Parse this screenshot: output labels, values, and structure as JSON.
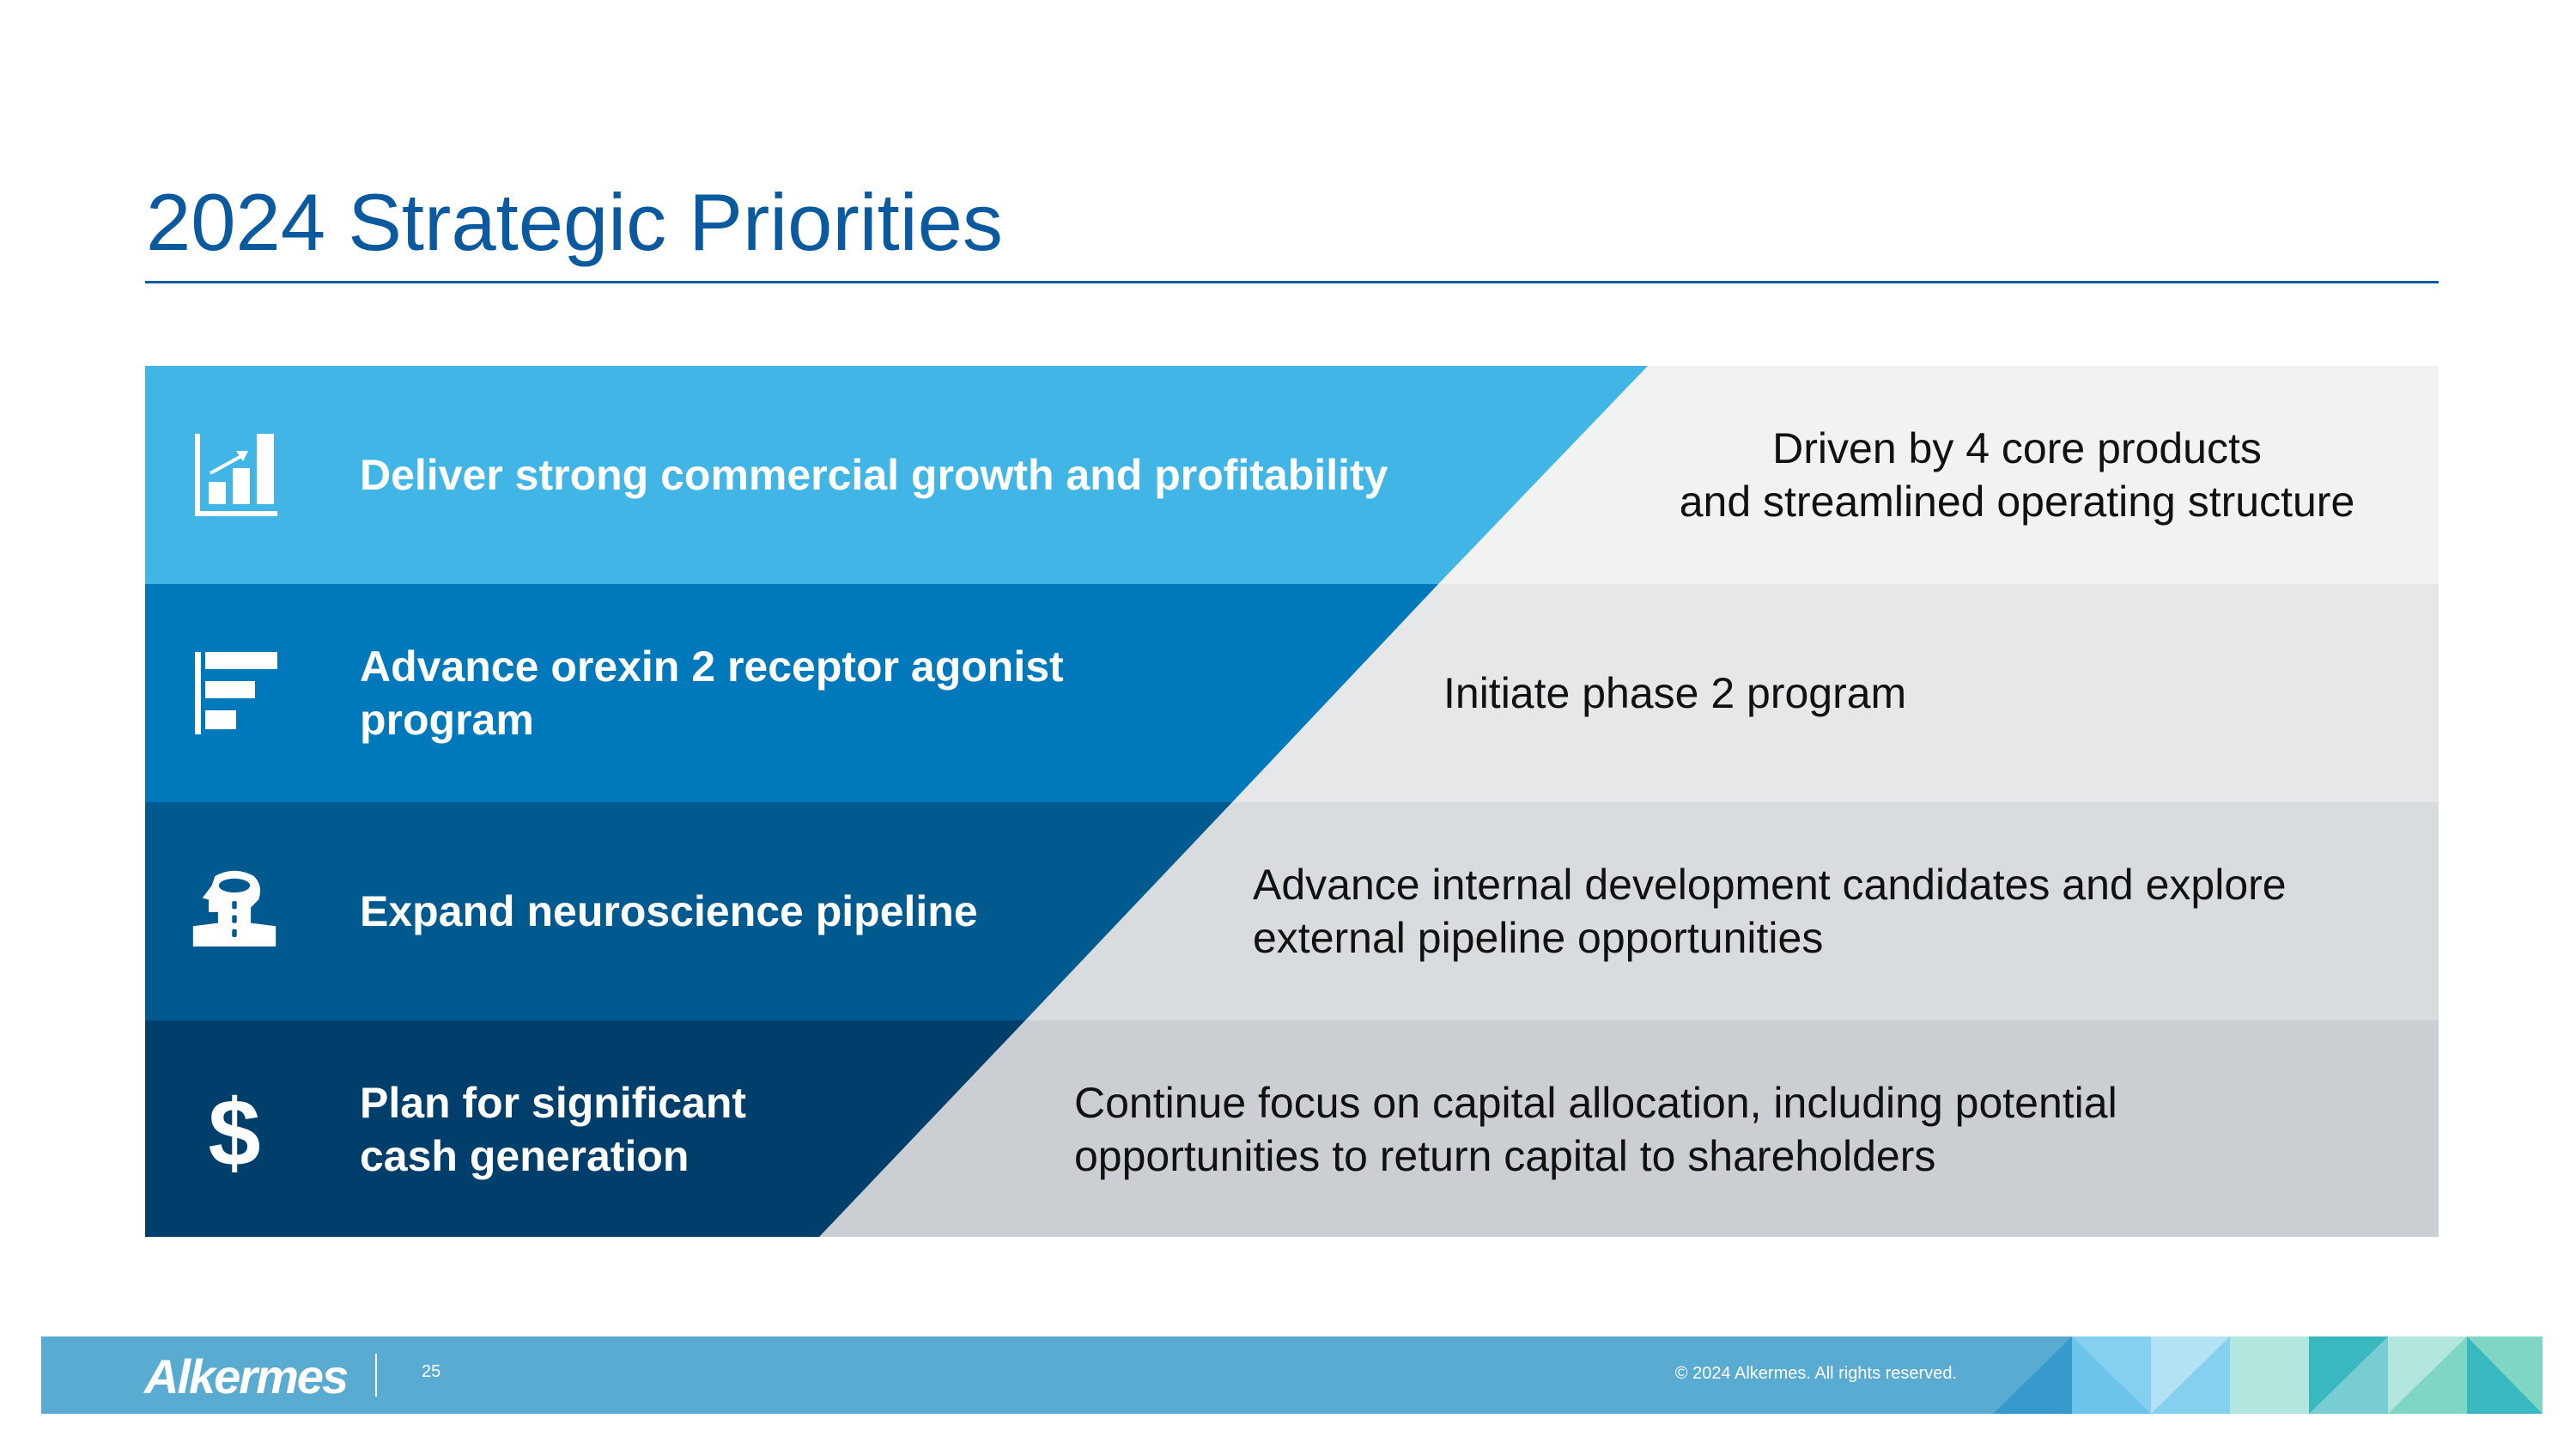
{
  "title": "2024 Strategic Priorities",
  "priorities": [
    {
      "icon": "growth-chart-icon",
      "label": "Deliver strong commercial growth and profitability",
      "description": "Driven by 4 core products\nand streamlined operating structure"
    },
    {
      "icon": "horizontal-bars-icon",
      "label": "Advance orexin 2 receptor agonist\nprogram",
      "description": "Initiate phase 2 program"
    },
    {
      "icon": "head-neuro-icon",
      "label": "Expand neuroscience pipeline",
      "description": "Advance internal development candidates and explore\nexternal pipeline opportunities"
    },
    {
      "icon": "dollar-icon",
      "label": "Plan for significant\ncash generation",
      "description": "Continue focus on capital allocation, including potential\nopportunities to return capital to shareholders"
    }
  ],
  "footer": {
    "logo": "Alkermes",
    "page_number": "25",
    "copyright": "© 2024 Alkermes. All rights reserved."
  },
  "colors": {
    "title": "#0b5aa0",
    "row1": "#41b6e6",
    "row2": "#0079bc",
    "row3": "#005a8f",
    "row4": "#003f6b",
    "footer": "#5aabd1"
  }
}
